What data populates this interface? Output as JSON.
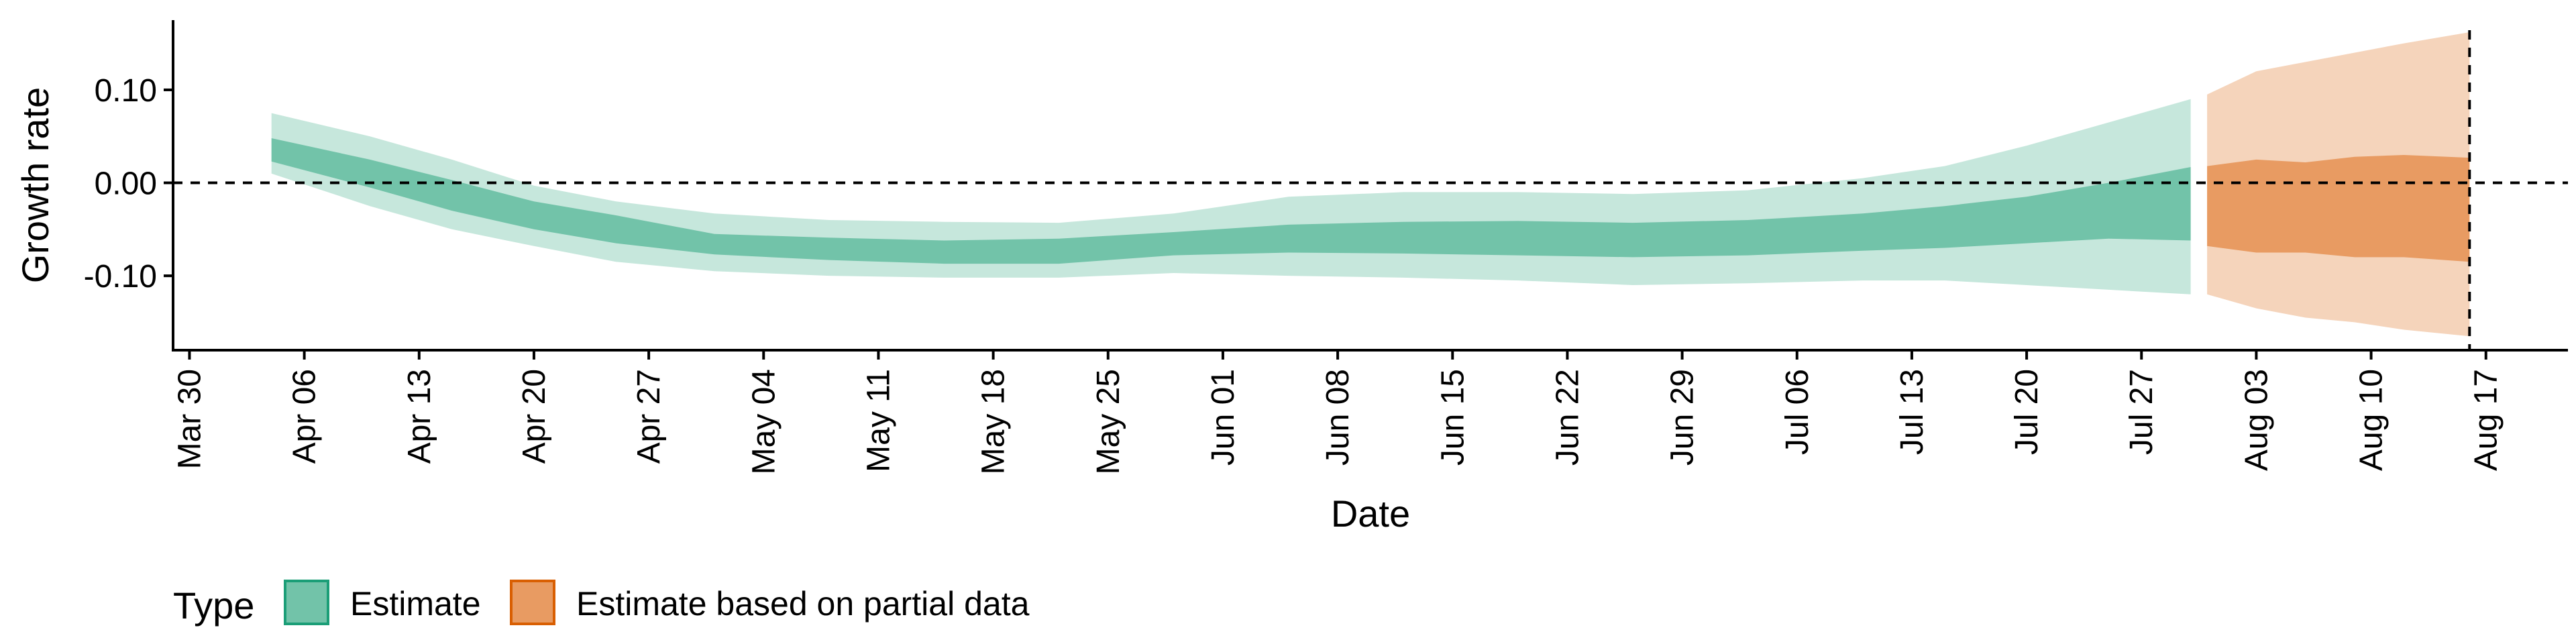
{
  "chart_data": {
    "type": "area",
    "xlabel": "Date",
    "ylabel": "Growth rate",
    "x_ticks": [
      "Mar 30",
      "Apr 06",
      "Apr 13",
      "Apr 20",
      "Apr 27",
      "May 04",
      "May 11",
      "May 18",
      "May 25",
      "Jun 01",
      "Jun 08",
      "Jun 15",
      "Jun 22",
      "Jun 29",
      "Jul 06",
      "Jul 13",
      "Jul 20",
      "Jul 27",
      "Aug 03",
      "Aug 10",
      "Aug 17"
    ],
    "y_ticks": [
      "0.10",
      "0.00",
      "-0.10"
    ],
    "x_range": [
      "2020-03-29",
      "2020-08-22"
    ],
    "ylim": [
      -0.18,
      0.175
    ],
    "reference_hline": 0.0,
    "reference_vline": "2020-08-16",
    "grid": false,
    "legend": {
      "title": "Type",
      "placement": "bottom-left",
      "entries": [
        {
          "label": "Estimate",
          "fill": "#72c3a9",
          "border": "#1b9e77"
        },
        {
          "label": "Estimate based on partial data",
          "fill": "#e89b62",
          "border": "#d95f02"
        }
      ]
    },
    "series": [
      {
        "name": "Estimate",
        "inner_color": "#72c3a9",
        "outer_color": "#c6e7dc",
        "dates": [
          "2020-04-04",
          "2020-04-10",
          "2020-04-15",
          "2020-04-20",
          "2020-04-25",
          "2020-05-01",
          "2020-05-08",
          "2020-05-15",
          "2020-05-22",
          "2020-05-29",
          "2020-06-05",
          "2020-06-12",
          "2020-06-19",
          "2020-06-26",
          "2020-07-03",
          "2020-07-10",
          "2020-07-15",
          "2020-07-20",
          "2020-07-25",
          "2020-07-30"
        ],
        "inner_upper": [
          0.048,
          0.025,
          0.003,
          -0.02,
          -0.035,
          -0.055,
          -0.059,
          -0.062,
          -0.06,
          -0.053,
          -0.045,
          -0.042,
          -0.041,
          -0.043,
          -0.04,
          -0.033,
          -0.025,
          -0.015,
          0.0,
          0.017
        ],
        "inner_lower": [
          0.023,
          -0.005,
          -0.03,
          -0.05,
          -0.065,
          -0.077,
          -0.083,
          -0.087,
          -0.087,
          -0.078,
          -0.075,
          -0.076,
          -0.078,
          -0.08,
          -0.078,
          -0.073,
          -0.07,
          -0.065,
          -0.06,
          -0.062
        ],
        "outer_upper": [
          0.075,
          0.05,
          0.025,
          -0.003,
          -0.02,
          -0.033,
          -0.04,
          -0.042,
          -0.043,
          -0.033,
          -0.015,
          -0.01,
          -0.01,
          -0.012,
          -0.008,
          0.005,
          0.018,
          0.04,
          0.065,
          0.09
        ],
        "outer_lower": [
          0.01,
          -0.025,
          -0.05,
          -0.068,
          -0.085,
          -0.095,
          -0.1,
          -0.102,
          -0.102,
          -0.097,
          -0.1,
          -0.102,
          -0.105,
          -0.11,
          -0.108,
          -0.105,
          -0.105,
          -0.11,
          -0.115,
          -0.12
        ]
      },
      {
        "name": "Estimate based on partial data",
        "inner_color": "#e89b62",
        "outer_color": "#f5d4bb",
        "dates": [
          "2020-07-31",
          "2020-08-03",
          "2020-08-06",
          "2020-08-09",
          "2020-08-12",
          "2020-08-16"
        ],
        "inner_upper": [
          0.018,
          0.025,
          0.022,
          0.028,
          0.03,
          0.027
        ],
        "inner_lower": [
          -0.068,
          -0.075,
          -0.075,
          -0.08,
          -0.08,
          -0.085
        ],
        "outer_upper": [
          0.095,
          0.12,
          0.13,
          0.14,
          0.15,
          0.162
        ],
        "outer_lower": [
          -0.12,
          -0.135,
          -0.145,
          -0.15,
          -0.158,
          -0.165
        ]
      }
    ]
  }
}
